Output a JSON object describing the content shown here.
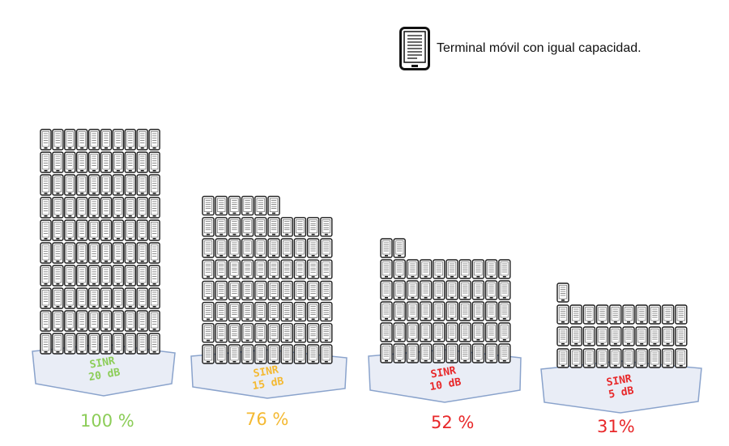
{
  "legend": {
    "label": "Terminal móvil con igual capacidad.",
    "icon": "mobile-terminal-icon"
  },
  "groups": [
    {
      "sinr_label": "SINR",
      "sinr_value": "20 dB",
      "percent": "100 %",
      "color": "#8ccd58",
      "terminals": 100
    },
    {
      "sinr_label": "SINR",
      "sinr_value": "15 dB",
      "percent": "76 %",
      "color": "#f4b932",
      "terminals": 76
    },
    {
      "sinr_label": "SINR",
      "sinr_value": "10 dB",
      "percent": "52 %",
      "color": "#e8282a",
      "terminals": 52
    },
    {
      "sinr_label": "SINR",
      "sinr_value": "5 dB",
      "percent": "31%",
      "color": "#e8282a",
      "terminals": 31
    }
  ]
}
